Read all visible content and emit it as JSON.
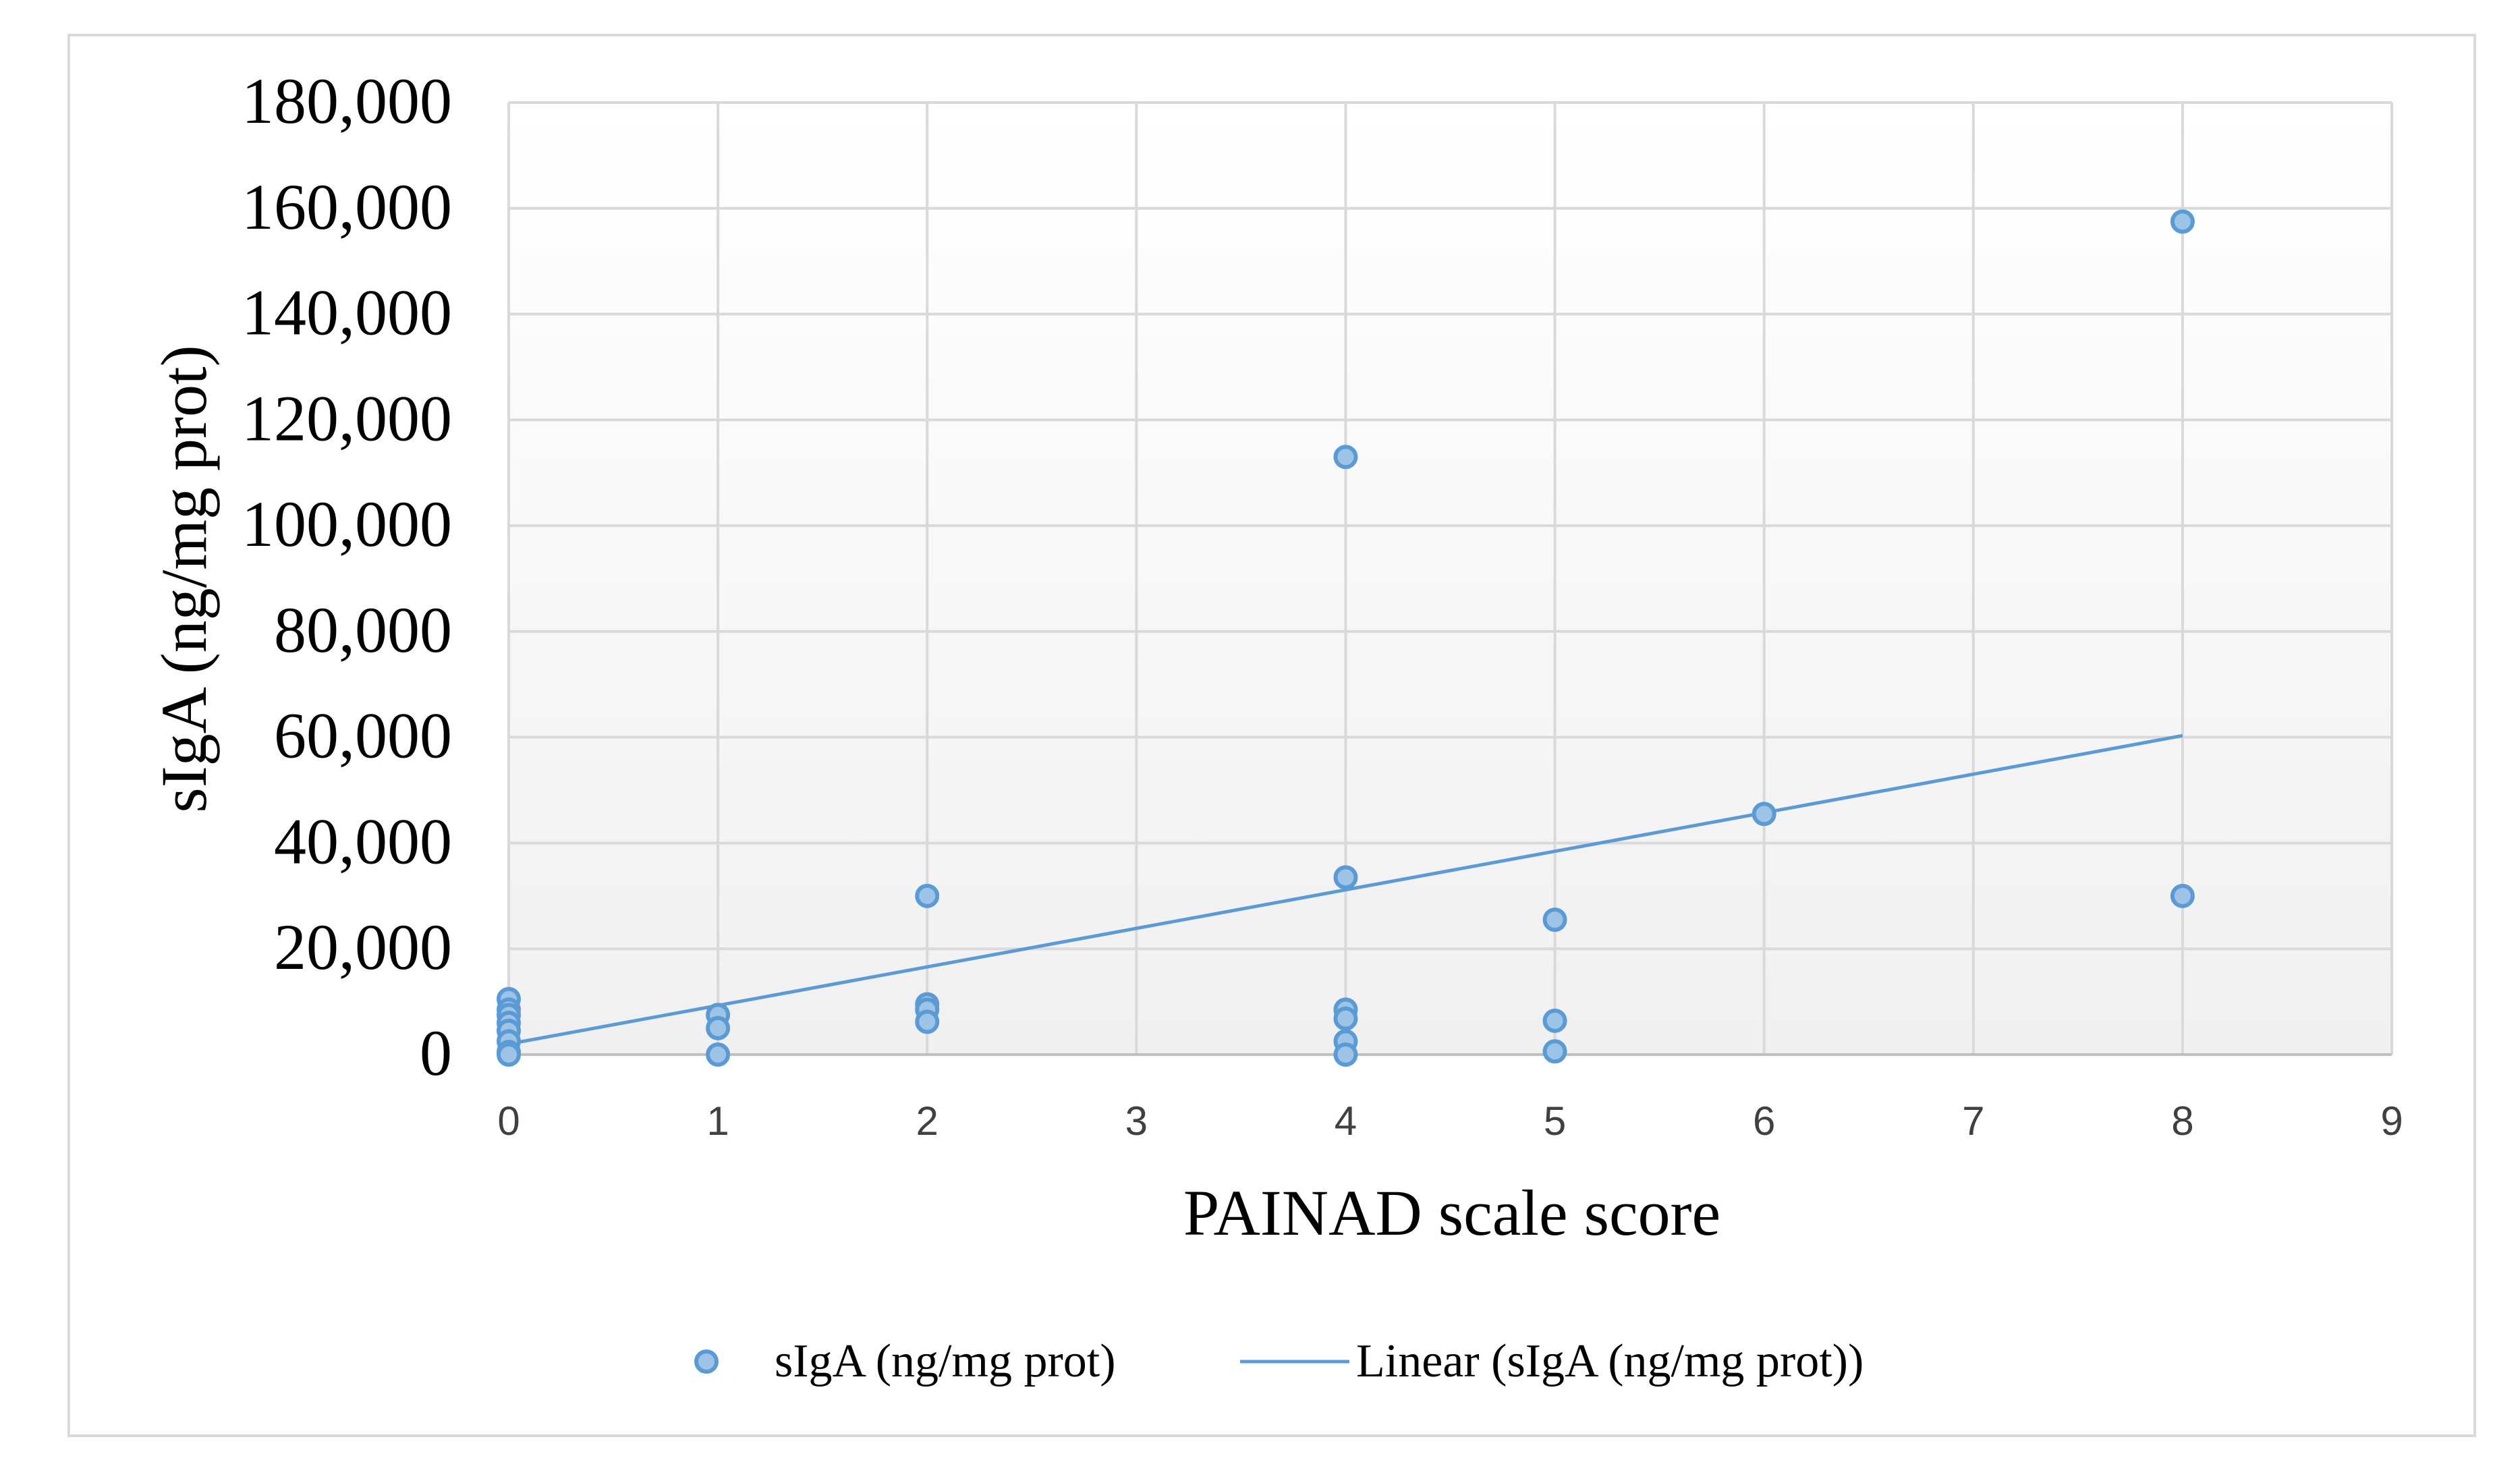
{
  "chart_data": {
    "type": "scatter",
    "title": "",
    "xlabel": "PAINAD scale score",
    "ylabel": "sIgA (ng/mg prot)",
    "xlim": [
      0,
      9
    ],
    "ylim": [
      0,
      180000
    ],
    "x_ticks": [
      0,
      1,
      2,
      3,
      4,
      5,
      6,
      7,
      8,
      9
    ],
    "y_ticks": [
      0,
      20000,
      40000,
      60000,
      80000,
      100000,
      120000,
      140000,
      160000,
      180000
    ],
    "x_tick_labels": [
      "0",
      "1",
      "2",
      "3",
      "4",
      "5",
      "6",
      "7",
      "8",
      "9"
    ],
    "y_tick_labels": [
      "0",
      "20,000",
      "40,000",
      "60,000",
      "80,000",
      "100,000",
      "120,000",
      "140,000",
      "160,000",
      "180,000"
    ],
    "grid": true,
    "legend_position": "bottom",
    "series": [
      {
        "name": "sIgA (ng/mg prot)",
        "kind": "scatter",
        "color": "#5b9bd5",
        "fill": "#9dc3e6",
        "points": [
          {
            "x": 0,
            "y": 10500
          },
          {
            "x": 0,
            "y": 8500
          },
          {
            "x": 0,
            "y": 7500
          },
          {
            "x": 0,
            "y": 6000
          },
          {
            "x": 0,
            "y": 4500
          },
          {
            "x": 0,
            "y": 2500
          },
          {
            "x": 0,
            "y": 500
          },
          {
            "x": 0,
            "y": 0
          },
          {
            "x": 1,
            "y": 7500
          },
          {
            "x": 1,
            "y": 5000
          },
          {
            "x": 1,
            "y": 0
          },
          {
            "x": 2,
            "y": 30000
          },
          {
            "x": 2,
            "y": 9500
          },
          {
            "x": 2,
            "y": 8500
          },
          {
            "x": 2,
            "y": 6200
          },
          {
            "x": 4,
            "y": 113000
          },
          {
            "x": 4,
            "y": 33500
          },
          {
            "x": 4,
            "y": 8500
          },
          {
            "x": 4,
            "y": 6800
          },
          {
            "x": 4,
            "y": 2500
          },
          {
            "x": 4,
            "y": 0
          },
          {
            "x": 5,
            "y": 25500
          },
          {
            "x": 5,
            "y": 6400
          },
          {
            "x": 5,
            "y": 600
          },
          {
            "x": 6,
            "y": 45500
          },
          {
            "x": 8,
            "y": 157500
          },
          {
            "x": 8,
            "y": 30000
          }
        ]
      },
      {
        "name": "Linear (sIgA (ng/mg prot))",
        "kind": "trendline",
        "color": "#5b9bd5",
        "points": [
          {
            "x": 0,
            "y": 2000
          },
          {
            "x": 8,
            "y": 60300
          }
        ]
      }
    ]
  }
}
